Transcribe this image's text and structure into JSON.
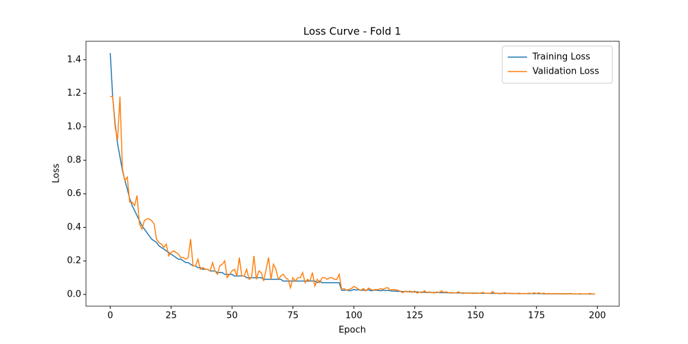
{
  "chart_data": {
    "type": "line",
    "title": "Loss Curve - Fold 1",
    "x_label": "Epoch",
    "y_label": "Loss",
    "x": [
      0,
      1,
      2,
      3,
      4,
      5,
      6,
      7,
      8,
      9,
      10,
      11,
      12,
      13,
      14,
      15,
      16,
      17,
      18,
      19,
      20,
      21,
      22,
      23,
      24,
      25,
      26,
      27,
      28,
      29,
      30,
      31,
      32,
      33,
      34,
      35,
      36,
      37,
      38,
      39,
      40,
      41,
      42,
      43,
      44,
      45,
      46,
      47,
      48,
      49,
      50,
      51,
      52,
      53,
      54,
      55,
      56,
      57,
      58,
      59,
      60,
      61,
      62,
      63,
      64,
      65,
      66,
      67,
      68,
      69,
      70,
      71,
      72,
      73,
      74,
      75,
      76,
      77,
      78,
      79,
      80,
      81,
      82,
      83,
      84,
      85,
      86,
      87,
      88,
      89,
      90,
      91,
      92,
      93,
      94,
      95,
      96,
      97,
      98,
      99,
      100,
      101,
      102,
      103,
      104,
      105,
      106,
      107,
      108,
      109,
      110,
      111,
      112,
      113,
      114,
      115,
      116,
      117,
      118,
      119,
      120,
      121,
      122,
      123,
      124,
      125,
      126,
      127,
      128,
      129,
      130,
      131,
      132,
      133,
      134,
      135,
      136,
      137,
      138,
      139,
      140,
      141,
      142,
      143,
      144,
      145,
      146,
      147,
      148,
      149,
      150,
      151,
      152,
      153,
      154,
      155,
      156,
      157,
      158,
      159,
      160,
      161,
      162,
      163,
      164,
      165,
      166,
      167,
      168,
      169,
      170,
      171,
      172,
      173,
      174,
      175,
      176,
      177,
      178,
      179,
      180,
      181,
      182,
      183,
      184,
      185,
      186,
      187,
      188,
      189,
      190,
      191,
      192,
      193,
      194,
      195,
      196,
      197,
      198,
      199
    ],
    "series": [
      {
        "name": "Training Loss",
        "color": "#1f77b4",
        "values": [
          1.44,
          1.18,
          1.02,
          0.9,
          0.82,
          0.74,
          0.68,
          0.63,
          0.57,
          0.53,
          0.5,
          0.47,
          0.44,
          0.41,
          0.39,
          0.37,
          0.35,
          0.33,
          0.32,
          0.31,
          0.29,
          0.28,
          0.27,
          0.26,
          0.25,
          0.24,
          0.23,
          0.22,
          0.21,
          0.21,
          0.2,
          0.19,
          0.19,
          0.18,
          0.17,
          0.17,
          0.16,
          0.16,
          0.15,
          0.15,
          0.15,
          0.14,
          0.14,
          0.14,
          0.13,
          0.13,
          0.13,
          0.12,
          0.12,
          0.12,
          0.12,
          0.11,
          0.11,
          0.11,
          0.11,
          0.11,
          0.1,
          0.1,
          0.1,
          0.1,
          0.1,
          0.1,
          0.1,
          0.09,
          0.09,
          0.09,
          0.09,
          0.09,
          0.09,
          0.09,
          0.09,
          0.08,
          0.08,
          0.08,
          0.08,
          0.08,
          0.08,
          0.08,
          0.08,
          0.08,
          0.08,
          0.08,
          0.08,
          0.08,
          0.08,
          0.07,
          0.08,
          0.07,
          0.07,
          0.07,
          0.07,
          0.07,
          0.07,
          0.07,
          0.07,
          0.025,
          0.024,
          0.028,
          0.022,
          0.024,
          0.03,
          0.026,
          0.028,
          0.024,
          0.026,
          0.025,
          0.028,
          0.022,
          0.024,
          0.026,
          0.024,
          0.022,
          0.025,
          0.023,
          0.024,
          0.022,
          0.02,
          0.021,
          0.018,
          0.019,
          0.017,
          0.016,
          0.018,
          0.015,
          0.016,
          0.014,
          0.015,
          0.013,
          0.014,
          0.012,
          0.013,
          0.012,
          0.012,
          0.011,
          0.012,
          0.011,
          0.01,
          0.011,
          0.01,
          0.01,
          0.009,
          0.01,
          0.009,
          0.009,
          0.009,
          0.008,
          0.009,
          0.008,
          0.008,
          0.008,
          0.007,
          0.008,
          0.007,
          0.007,
          0.007,
          0.007,
          0.007,
          0.006,
          0.007,
          0.006,
          0.006,
          0.006,
          0.006,
          0.006,
          0.006,
          0.006,
          0.005,
          0.006,
          0.005,
          0.005,
          0.005,
          0.005,
          0.005,
          0.005,
          0.005,
          0.005,
          0.005,
          0.005,
          0.004,
          0.004,
          0.004,
          0.004,
          0.004,
          0.004,
          0.004,
          0.004,
          0.004,
          0.004,
          0.004,
          0.004,
          0.003,
          0.003,
          0.003,
          0.003,
          0.003,
          0.003,
          0.003,
          0.003,
          0.003,
          0.003
        ]
      },
      {
        "name": "Validation Loss",
        "color": "#ff7f0e",
        "values": [
          1.18,
          1.18,
          1.0,
          0.92,
          1.18,
          0.75,
          0.68,
          0.7,
          0.55,
          0.55,
          0.53,
          0.59,
          0.42,
          0.39,
          0.44,
          0.45,
          0.45,
          0.44,
          0.42,
          0.33,
          0.31,
          0.3,
          0.28,
          0.3,
          0.23,
          0.25,
          0.26,
          0.25,
          0.24,
          0.22,
          0.22,
          0.21,
          0.22,
          0.33,
          0.17,
          0.17,
          0.21,
          0.15,
          0.16,
          0.15,
          0.15,
          0.14,
          0.19,
          0.14,
          0.12,
          0.17,
          0.18,
          0.2,
          0.1,
          0.12,
          0.14,
          0.15,
          0.11,
          0.22,
          0.11,
          0.11,
          0.15,
          0.09,
          0.1,
          0.23,
          0.09,
          0.14,
          0.13,
          0.08,
          0.15,
          0.22,
          0.09,
          0.18,
          0.15,
          0.09,
          0.11,
          0.12,
          0.1,
          0.09,
          0.04,
          0.1,
          0.08,
          0.1,
          0.1,
          0.13,
          0.07,
          0.09,
          0.08,
          0.13,
          0.05,
          0.09,
          0.07,
          0.1,
          0.1,
          0.09,
          0.1,
          0.1,
          0.09,
          0.09,
          0.12,
          0.03,
          0.035,
          0.025,
          0.03,
          0.035,
          0.048,
          0.04,
          0.03,
          0.025,
          0.035,
          0.02,
          0.038,
          0.03,
          0.025,
          0.03,
          0.028,
          0.035,
          0.03,
          0.038,
          0.04,
          0.025,
          0.03,
          0.028,
          0.025,
          0.02,
          0.01,
          0.02,
          0.015,
          0.02,
          0.012,
          0.02,
          0.008,
          0.015,
          0.01,
          0.022,
          0.01,
          0.015,
          0.012,
          0.008,
          0.015,
          0.01,
          0.022,
          0.012,
          0.015,
          0.01,
          0.012,
          0.008,
          0.01,
          0.015,
          0.008,
          0.005,
          0.01,
          0.006,
          0.008,
          0.005,
          0.01,
          0.006,
          0.008,
          0.012,
          0.006,
          0.008,
          0.005,
          0.018,
          0.005,
          0.008,
          0.004,
          0.006,
          0.01,
          0.005,
          0.008,
          0.004,
          0.006,
          0.005,
          0.008,
          0.004,
          0.006,
          0.005,
          0.008,
          0.004,
          0.01,
          0.005,
          0.01,
          0.004,
          0.008,
          0.003,
          0.006,
          0.004,
          0.005,
          0.003,
          0.006,
          0.002,
          0.005,
          0.004,
          0.003,
          0.006,
          0.002,
          0.004,
          0.003,
          0.005,
          0.002,
          0.004,
          0.003,
          0.006,
          0.002,
          0.004
        ]
      }
    ],
    "xlim": [
      -9.95,
      208.95
    ],
    "xticks": [
      0,
      25,
      50,
      75,
      100,
      125,
      150,
      175,
      200
    ],
    "ylim": [
      -0.07,
      1.51
    ],
    "yticks": [
      {
        "value": 0,
        "label": "0.0"
      },
      0.2,
      0.4,
      0.6,
      0.8,
      {
        "value": 1,
        "label": "1.0"
      },
      1.2,
      1.4
    ],
    "legend": "upper right",
    "grid": false
  }
}
